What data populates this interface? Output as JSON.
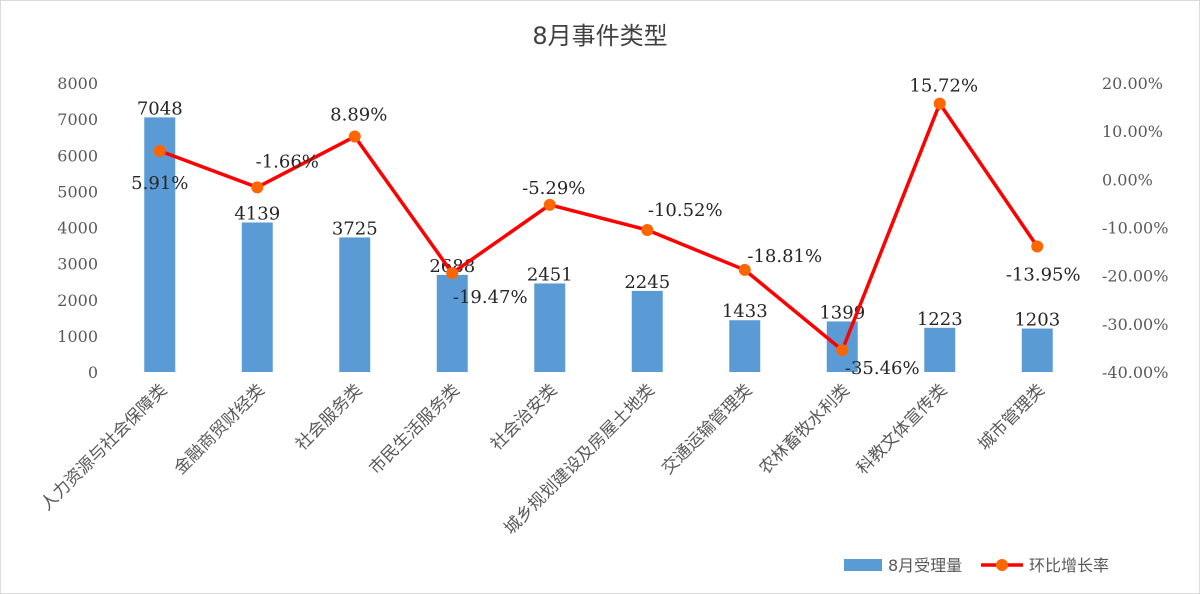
{
  "chart_data": {
    "type": "bar",
    "title": "8月事件类型",
    "categories": [
      "人力资源与社会保障类",
      "金融商贸财经类",
      "社会服务类",
      "市民生活服务类",
      "社会治安类",
      "城乡规划建设及房屋土地类",
      "交通运输管理类",
      "农林畜牧水利类",
      "科教文体宣传类",
      "城市管理类"
    ],
    "series": [
      {
        "name": "8月受理量",
        "type": "bar",
        "axis": "left",
        "color": "#5b9bd5",
        "values": [
          7048,
          4139,
          3725,
          2688,
          2451,
          2245,
          1433,
          1399,
          1223,
          1203
        ],
        "labels": [
          "7048",
          "4139",
          "3725",
          "2688",
          "2451",
          "2245",
          "1433",
          "1399",
          "1223",
          "1203"
        ]
      },
      {
        "name": "环比增长率",
        "type": "line",
        "axis": "right",
        "color": "#ff0000",
        "marker_color": "#ff6600",
        "values": [
          5.91,
          -1.66,
          8.89,
          -19.47,
          -5.29,
          -10.52,
          -18.81,
          -35.46,
          15.72,
          -13.95
        ],
        "labels": [
          "5.91%",
          "-1.66%",
          "8.89%",
          "-19.47%",
          "-5.29%",
          "-10.52%",
          "-18.81%",
          "-35.46%",
          "15.72%",
          "-13.95%"
        ]
      }
    ],
    "y_left": {
      "min": 0,
      "max": 8000,
      "ticks": [
        "0",
        "1000",
        "2000",
        "3000",
        "4000",
        "5000",
        "6000",
        "7000",
        "8000"
      ]
    },
    "y_right": {
      "min": -40,
      "max": 20,
      "ticks": [
        "-40.00%",
        "-30.00%",
        "-20.00%",
        "-10.00%",
        "0.00%",
        "10.00%",
        "20.00%"
      ]
    },
    "legend": {
      "position": "bottom-right"
    },
    "grid": false
  }
}
